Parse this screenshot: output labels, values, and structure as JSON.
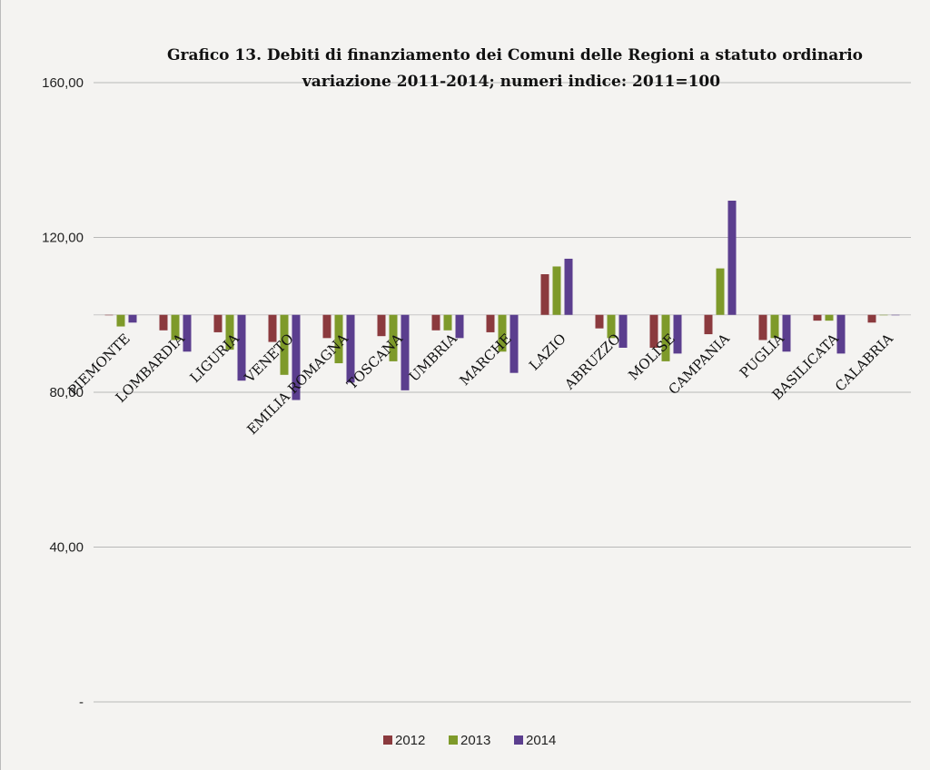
{
  "chart_data": {
    "type": "bar",
    "title": "Grafico 13. Debiti di finanziamento dei Comuni delle Regioni a statuto  ordinario",
    "subtitle": "variazione 2011-2014; numeri indice: 2011=100",
    "y_tick_labels": [
      "-",
      "40,00",
      "80,00",
      "120,00",
      "160,00"
    ],
    "y_ticks": [
      0,
      40,
      80,
      120,
      160
    ],
    "ylim": [
      0,
      160
    ],
    "baseline": 100,
    "grid": true,
    "legend_position": "bottom",
    "categories": [
      "PIEMONTE",
      "LOMBARDIA",
      "LIGURIA",
      "VENETO",
      "EMILIA ROMAGNA",
      "TOSCANA",
      "UMBRIA",
      "MARCHE",
      "LAZIO",
      "ABRUZZO",
      "MOLISE",
      "CAMPANIA",
      "PUGLIA",
      "BASILICATA",
      "CALABRIA"
    ],
    "series": [
      {
        "name": "2012",
        "color": "#8b3a3e",
        "values": [
          100.0,
          96.0,
          95.5,
          93.0,
          94.0,
          94.5,
          96.0,
          95.5,
          110.5,
          96.5,
          91.5,
          95.0,
          93.5,
          98.5,
          98.0
        ]
      },
      {
        "name": "2013",
        "color": "#7e9a2a",
        "values": [
          97.0,
          93.5,
          91.0,
          84.5,
          87.5,
          88.0,
          96.0,
          90.5,
          112.5,
          94.0,
          88.0,
          112.0,
          94.0,
          98.5,
          100.0
        ]
      },
      {
        "name": "2014",
        "color": "#5b3e8e",
        "values": [
          98.0,
          90.5,
          83.0,
          78.0,
          82.5,
          80.5,
          94.0,
          85.0,
          114.5,
          91.5,
          90.0,
          129.5,
          90.5,
          90.0,
          100.0
        ]
      }
    ]
  }
}
